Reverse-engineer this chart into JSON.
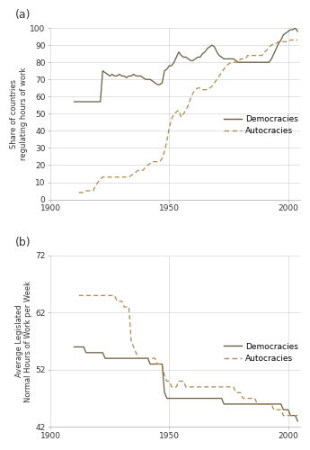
{
  "panel_a": {
    "title": "(a)",
    "ylabel": "Share of countries\nregulating hours of work",
    "ylim": [
      0,
      100
    ],
    "yticks": [
      0,
      10,
      20,
      30,
      40,
      50,
      60,
      70,
      80,
      90,
      100
    ],
    "xlim": [
      1900,
      2005
    ],
    "xticks": [
      1900,
      1950,
      2000
    ],
    "dem_x": [
      1910,
      1911,
      1912,
      1913,
      1914,
      1915,
      1916,
      1917,
      1918,
      1919,
      1920,
      1921,
      1922,
      1923,
      1924,
      1925,
      1926,
      1927,
      1928,
      1929,
      1930,
      1931,
      1932,
      1933,
      1934,
      1935,
      1936,
      1937,
      1938,
      1939,
      1940,
      1941,
      1942,
      1943,
      1944,
      1945,
      1946,
      1947,
      1948,
      1949,
      1950,
      1951,
      1952,
      1953,
      1954,
      1955,
      1956,
      1957,
      1958,
      1959,
      1960,
      1961,
      1962,
      1963,
      1964,
      1965,
      1966,
      1967,
      1968,
      1969,
      1970,
      1971,
      1972,
      1973,
      1974,
      1975,
      1976,
      1977,
      1978,
      1979,
      1980,
      1981,
      1982,
      1983,
      1984,
      1985,
      1986,
      1987,
      1988,
      1989,
      1990,
      1991,
      1992,
      1993,
      1994,
      1995,
      1996,
      1997,
      1998,
      1999,
      2000,
      2001,
      2002,
      2003,
      2004
    ],
    "dem_y": [
      57,
      57,
      57,
      57,
      57,
      57,
      57,
      57,
      57,
      57,
      57,
      57,
      75,
      74,
      73,
      72,
      73,
      72,
      72,
      73,
      72,
      72,
      71,
      72,
      72,
      73,
      72,
      72,
      72,
      71,
      70,
      70,
      70,
      69,
      68,
      67,
      67,
      68,
      75,
      76,
      78,
      78,
      80,
      83,
      86,
      84,
      83,
      83,
      82,
      81,
      81,
      82,
      83,
      83,
      85,
      86,
      88,
      89,
      90,
      89,
      86,
      84,
      83,
      82,
      82,
      82,
      82,
      82,
      81,
      80,
      80,
      80,
      80,
      80,
      80,
      80,
      80,
      80,
      80,
      80,
      80,
      80,
      80,
      82,
      85,
      88,
      91,
      93,
      96,
      97,
      98,
      99,
      99,
      100,
      98
    ],
    "aut_x": [
      1912,
      1913,
      1914,
      1915,
      1916,
      1917,
      1918,
      1919,
      1920,
      1921,
      1922,
      1923,
      1924,
      1925,
      1926,
      1927,
      1928,
      1929,
      1930,
      1931,
      1932,
      1933,
      1934,
      1935,
      1936,
      1937,
      1938,
      1939,
      1940,
      1941,
      1942,
      1943,
      1944,
      1945,
      1946,
      1947,
      1948,
      1949,
      1950,
      1951,
      1952,
      1953,
      1954,
      1955,
      1956,
      1957,
      1958,
      1959,
      1960,
      1961,
      1962,
      1963,
      1964,
      1965,
      1966,
      1967,
      1968,
      1969,
      1970,
      1971,
      1972,
      1973,
      1974,
      1975,
      1976,
      1977,
      1978,
      1979,
      1980,
      1981,
      1982,
      1983,
      1984,
      1985,
      1986,
      1987,
      1988,
      1989,
      1990,
      1991,
      1992,
      1993,
      1994,
      1995,
      1996,
      1997,
      1998,
      1999,
      2000,
      2001,
      2002,
      2003,
      2004
    ],
    "aut_y": [
      4,
      4,
      4,
      5,
      5,
      5,
      5,
      8,
      10,
      12,
      13,
      13,
      13,
      13,
      13,
      13,
      13,
      13,
      13,
      13,
      13,
      13,
      14,
      15,
      16,
      17,
      17,
      17,
      19,
      20,
      21,
      22,
      22,
      22,
      22,
      24,
      28,
      34,
      42,
      47,
      50,
      51,
      52,
      48,
      50,
      52,
      55,
      59,
      62,
      64,
      65,
      65,
      64,
      64,
      64,
      65,
      66,
      68,
      70,
      72,
      74,
      76,
      78,
      79,
      80,
      80,
      80,
      80,
      82,
      82,
      82,
      84,
      84,
      84,
      84,
      84,
      84,
      84,
      86,
      87,
      89,
      90,
      91,
      91,
      92,
      92,
      92,
      92,
      92,
      93,
      93,
      93,
      93
    ],
    "dem_color": "#6b5b3e",
    "aut_color": "#b08850",
    "legend_dem": "Democracies",
    "legend_aut": "Autocracies"
  },
  "panel_b": {
    "title": "(b)",
    "ylabel": "Average Legislated\nNormal Hours of Work per Week",
    "ylim": [
      42,
      72
    ],
    "yticks": [
      42,
      52,
      62,
      72
    ],
    "xlim": [
      1900,
      2005
    ],
    "xticks": [
      1900,
      1950,
      2000
    ],
    "dem_x": [
      1910,
      1911,
      1912,
      1913,
      1914,
      1915,
      1916,
      1917,
      1918,
      1919,
      1920,
      1921,
      1922,
      1923,
      1924,
      1925,
      1926,
      1927,
      1928,
      1929,
      1930,
      1931,
      1932,
      1933,
      1934,
      1935,
      1936,
      1937,
      1938,
      1939,
      1940,
      1941,
      1942,
      1943,
      1944,
      1945,
      1946,
      1947,
      1948,
      1949,
      1950,
      1951,
      1952,
      1953,
      1954,
      1955,
      1956,
      1957,
      1958,
      1959,
      1960,
      1961,
      1962,
      1963,
      1964,
      1965,
      1966,
      1967,
      1968,
      1969,
      1970,
      1971,
      1972,
      1973,
      1974,
      1975,
      1976,
      1977,
      1978,
      1979,
      1980,
      1981,
      1982,
      1983,
      1984,
      1985,
      1986,
      1987,
      1988,
      1989,
      1990,
      1991,
      1992,
      1993,
      1994,
      1995,
      1996,
      1997,
      1998,
      1999,
      2000,
      2001,
      2002,
      2003,
      2004
    ],
    "dem_y": [
      56,
      56,
      56,
      56,
      56,
      55,
      55,
      55,
      55,
      55,
      55,
      55,
      55,
      54,
      54,
      54,
      54,
      54,
      54,
      54,
      54,
      54,
      54,
      54,
      54,
      54,
      54,
      54,
      54,
      54,
      54,
      54,
      53,
      53,
      53,
      53,
      53,
      53,
      48,
      47,
      47,
      47,
      47,
      47,
      47,
      47,
      47,
      47,
      47,
      47,
      47,
      47,
      47,
      47,
      47,
      47,
      47,
      47,
      47,
      47,
      47,
      47,
      47,
      46,
      46,
      46,
      46,
      46,
      46,
      46,
      46,
      46,
      46,
      46,
      46,
      46,
      46,
      46,
      46,
      46,
      46,
      46,
      46,
      46,
      46,
      46,
      46,
      46,
      45,
      45,
      45,
      44,
      44,
      44,
      43
    ],
    "aut_x": [
      1912,
      1913,
      1914,
      1915,
      1916,
      1917,
      1918,
      1919,
      1920,
      1921,
      1922,
      1923,
      1924,
      1925,
      1926,
      1927,
      1928,
      1929,
      1930,
      1931,
      1932,
      1933,
      1934,
      1935,
      1936,
      1937,
      1938,
      1939,
      1940,
      1941,
      1942,
      1943,
      1944,
      1945,
      1946,
      1947,
      1948,
      1949,
      1950,
      1951,
      1952,
      1953,
      1954,
      1955,
      1956,
      1957,
      1958,
      1959,
      1960,
      1961,
      1962,
      1963,
      1964,
      1965,
      1966,
      1967,
      1968,
      1969,
      1970,
      1971,
      1972,
      1973,
      1974,
      1975,
      1976,
      1977,
      1978,
      1979,
      1980,
      1981,
      1982,
      1983,
      1984,
      1985,
      1986,
      1987,
      1988,
      1989,
      1990,
      1991,
      1992,
      1993,
      1994,
      1995,
      1996,
      1997,
      1998,
      1999,
      2000,
      2001,
      2002,
      2003,
      2004
    ],
    "aut_y": [
      65,
      65,
      65,
      65,
      65,
      65,
      65,
      65,
      65,
      65,
      65,
      65,
      65,
      65,
      65,
      65,
      64,
      64,
      64,
      63,
      63,
      63,
      57,
      56,
      55,
      54,
      54,
      54,
      54,
      54,
      54,
      54,
      54,
      53,
      53,
      53,
      51,
      50,
      50,
      49,
      49,
      49,
      50,
      50,
      50,
      49,
      49,
      49,
      49,
      49,
      49,
      49,
      49,
      49,
      49,
      49,
      49,
      49,
      49,
      49,
      49,
      49,
      49,
      49,
      49,
      49,
      48,
      48,
      48,
      47,
      47,
      47,
      47,
      47,
      47,
      46,
      46,
      46,
      46,
      46,
      46,
      46,
      45,
      45,
      45,
      45,
      44,
      44,
      44,
      44,
      44,
      44,
      44
    ],
    "dem_color": "#6b5b3e",
    "aut_color": "#b08850",
    "legend_dem": "Democracies",
    "legend_aut": "Autocracies"
  },
  "background_color": "#ffffff",
  "grid_color": "#cccccc",
  "linewidth": 0.9
}
